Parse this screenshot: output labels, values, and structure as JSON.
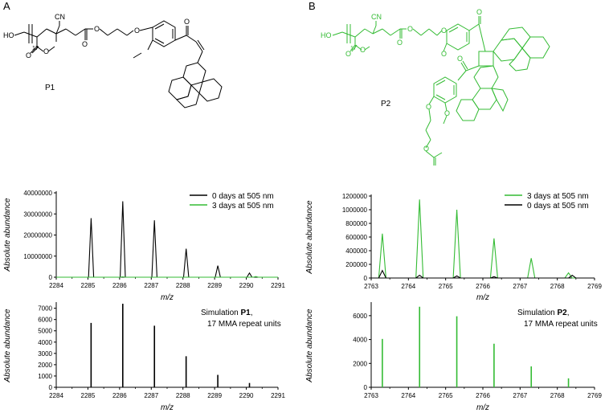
{
  "panels": {
    "A": {
      "letter": "A",
      "molecule": {
        "label": "P1",
        "atoms": {
          "ho": "HO",
          "cn": "CN",
          "repeat": "17",
          "o1": "O",
          "o2": "O",
          "o3": "O",
          "o4": "O",
          "o5": "O",
          "o6": "O"
        }
      }
    },
    "B": {
      "letter": "B",
      "molecule": {
        "label": "P2",
        "atoms": {
          "ho": "HO",
          "cn": "CN",
          "repeat": "17",
          "o1": "O",
          "o2": "O",
          "o3": "O",
          "o4": "O",
          "o5": "O",
          "o6": "O",
          "o7": "O",
          "o8": "O",
          "o9": "O",
          "o10": "O",
          "o11": "O"
        }
      }
    }
  },
  "colors": {
    "black": "#000000",
    "green": "#33bb33"
  },
  "chart_data": [
    {
      "id": "a-top",
      "type": "line",
      "xlabel": "m/z",
      "ylabel": "Absolute abundance",
      "xlim": [
        2284,
        2291
      ],
      "ylim": [
        0,
        40000000
      ],
      "xticks": [
        2284,
        2285,
        2286,
        2287,
        2288,
        2289,
        2290,
        2291
      ],
      "yticks": [
        0,
        10000000,
        20000000,
        30000000,
        40000000
      ],
      "legend_position": "top-right",
      "series": [
        {
          "name": "0 days at 505 nm",
          "color": "#000000",
          "peaks": [
            [
              2285.1,
              28000000
            ],
            [
              2286.1,
              36000000
            ],
            [
              2287.1,
              27000000
            ],
            [
              2288.1,
              13500000
            ],
            [
              2289.1,
              5500000
            ],
            [
              2290.1,
              2000000
            ]
          ]
        },
        {
          "name": "3 days at 505 nm",
          "color": "#33bb33",
          "peaks": [
            [
              2286.1,
              200000
            ],
            [
              2290.3,
              300000
            ]
          ]
        }
      ]
    },
    {
      "id": "a-bottom",
      "type": "bar",
      "xlabel": "m/z",
      "ylabel": "Absolute abundance",
      "xlim": [
        2284,
        2291
      ],
      "ylim": [
        0,
        7400
      ],
      "xticks": [
        2284,
        2285,
        2286,
        2287,
        2288,
        2289,
        2290,
        2291
      ],
      "yticks": [
        0,
        1000,
        2000,
        3000,
        4000,
        5000,
        6000,
        7000
      ],
      "annotation": {
        "line1_prefix": "Simulation ",
        "line1_bold": "P1",
        "line1_suffix": ",",
        "line2": "17 MMA repeat units"
      },
      "series": [
        {
          "color": "#000000",
          "peaks": [
            [
              2285.1,
              5700
            ],
            [
              2286.1,
              7400
            ],
            [
              2287.1,
              5450
            ],
            [
              2288.1,
              2750
            ],
            [
              2289.1,
              1100
            ],
            [
              2290.1,
              380
            ]
          ]
        }
      ]
    },
    {
      "id": "b-top",
      "type": "line",
      "xlabel": "m/z",
      "ylabel": "Absolute abundance",
      "xlim": [
        2763,
        2769
      ],
      "ylim": [
        0,
        1200000
      ],
      "xticks": [
        2763,
        2764,
        2765,
        2766,
        2767,
        2768,
        2769
      ],
      "yticks": [
        0,
        200000,
        400000,
        600000,
        800000,
        1000000,
        1200000
      ],
      "legend_position": "top-right",
      "series": [
        {
          "name": "3 days at 505 nm",
          "color": "#33bb33",
          "peaks": [
            [
              2763.3,
              650000
            ],
            [
              2764.3,
              1150000
            ],
            [
              2765.3,
              1000000
            ],
            [
              2766.3,
              580000
            ],
            [
              2767.3,
              290000
            ],
            [
              2768.3,
              75000
            ]
          ]
        },
        {
          "name": "0 days at 505 nm",
          "color": "#000000",
          "peaks": [
            [
              2763.3,
              110000
            ],
            [
              2764.3,
              40000
            ],
            [
              2765.3,
              30000
            ],
            [
              2766.3,
              20000
            ],
            [
              2768.4,
              40000
            ]
          ]
        }
      ]
    },
    {
      "id": "b-bottom",
      "type": "bar",
      "xlabel": "m/z",
      "ylabel": "Absolute abundance",
      "xlim": [
        2763,
        2769
      ],
      "ylim": [
        0,
        7000
      ],
      "xticks": [
        2763,
        2764,
        2765,
        2766,
        2767,
        2768,
        2769
      ],
      "yticks": [
        0,
        2000,
        4000,
        6000
      ],
      "annotation": {
        "line1_prefix": "Simulation ",
        "line1_bold": "P2",
        "line1_suffix": ",",
        "line2": "17 MMA repeat units"
      },
      "series": [
        {
          "color": "#33bb33",
          "peaks": [
            [
              2763.3,
              4050
            ],
            [
              2764.3,
              6750
            ],
            [
              2765.3,
              5950
            ],
            [
              2766.3,
              3650
            ],
            [
              2767.3,
              1750
            ],
            [
              2768.3,
              750
            ]
          ]
        }
      ]
    }
  ]
}
